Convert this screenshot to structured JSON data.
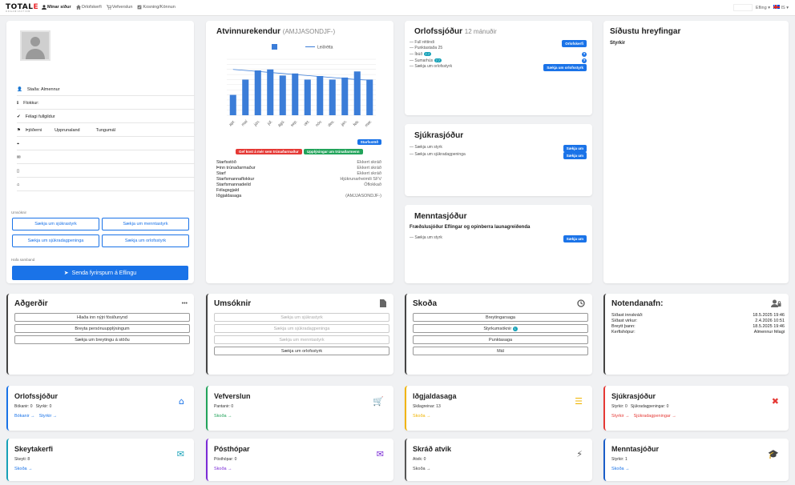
{
  "topbar": {
    "logo_main": "TOTAL",
    "logo_accent": "E",
    "logo_sub": "ORGANIZATION",
    "nav": [
      {
        "label": "Mínar síður",
        "icon": "user-icon",
        "active": true
      },
      {
        "label": "Orlofskerfi",
        "icon": "home-icon",
        "active": false
      },
      {
        "label": "Vefverslun",
        "icon": "cart-icon",
        "active": false
      },
      {
        "label": "Kosning/Könnun",
        "icon": "ballot-icon",
        "active": false
      }
    ],
    "org_menu": "Efling ▾",
    "lang_menu": "IS ▾"
  },
  "profile": {
    "rows": [
      {
        "icon": "user-icon",
        "label": "Staða: Almennur"
      },
      {
        "icon": "info-icon",
        "label": "Flokkur:"
      },
      {
        "icon": "check-icon",
        "label": "Félagi fullgildur"
      },
      {
        "icon": "flag-icon",
        "label": "Þjóðerni",
        "extra1": "Upprunaland",
        "extra2": "Tungumál"
      },
      {
        "icon": "location-icon",
        "label": ""
      },
      {
        "icon": "email-icon",
        "label": ""
      },
      {
        "icon": "phone-icon",
        "label": ""
      },
      {
        "icon": "bank-icon",
        "label": ""
      }
    ],
    "applications_label": "Umsóknir",
    "buttons": [
      "Sækja um sjúkrastyrk",
      "Sækja um menntastyrk",
      "Sækja um sjúkradagpeninga",
      "Sækja um orlofsstyrk"
    ],
    "contact_label": "Hafa samband",
    "send_button": "Senda fyrirspurn á Eflingu"
  },
  "employers": {
    "title": "Atvinnurekendur",
    "title_dim": "(AMJJASONDJF-)",
    "legend": "Leiðrétta",
    "starfsstod_btn": "Starfsstöð",
    "red_btn": "Gef kost á mér sem trúnaðarmaður",
    "green_btn": "Upplýsingar um trúnaðarmenn",
    "details": [
      {
        "k": "Starfsstöð",
        "v": "Ekkert skráð"
      },
      {
        "k": "Þinn trúnaðarmaður",
        "v": "Ekkert skráð"
      },
      {
        "k": "Starf",
        "v": "Ekkert skráð"
      },
      {
        "k": "Starfsmannaflokkur",
        "v": "Hjúkrunarheimili SFV"
      },
      {
        "k": "Starfsmannadeild",
        "v": "Óflokkað"
      },
      {
        "k": "Félagsgjald",
        "v": ""
      },
      {
        "k": "Iðgjaldasaga",
        "v": "(AMJJASONDJF-)"
      }
    ]
  },
  "chart_data": {
    "type": "bar",
    "categories": [
      "apr.",
      "maí",
      "jún.",
      "júl.",
      "ágú.",
      "sep.",
      "okt.",
      "nóv.",
      "des.",
      "jan.",
      "feb.",
      "mar."
    ],
    "values": [
      40,
      70,
      88,
      90,
      78,
      82,
      70,
      77,
      70,
      74,
      86,
      70
    ],
    "series": [
      {
        "name": "Leiðrétta",
        "values": [
          90,
          88,
          86,
          84,
          82,
          80,
          78,
          76,
          74,
          72,
          70,
          69
        ]
      }
    ],
    "ylim": [
      0,
      110
    ],
    "grid": true,
    "legend": "top-right"
  },
  "orlof": {
    "title": "Orlofssjóður",
    "title_dim": "12 mánuðir",
    "rows": [
      {
        "label": "— Full réttindi",
        "btn": "Orlofskerfi"
      },
      {
        "label": "— Punktastaða 25",
        "btn": ""
      },
      {
        "label": "— Íbúð",
        "badge": "7.7",
        "q": true
      },
      {
        "label": "— Sumarhús",
        "badge": "7.7",
        "q": true
      },
      {
        "label": "— Sækja um orlofsstyrk",
        "btn": "Sækja um orlofsstyrk"
      }
    ]
  },
  "sjukra": {
    "title": "Sjúkrasjóður",
    "rows": [
      {
        "label": "— Sækja um styrk",
        "btn": "Sækja um"
      },
      {
        "label": "— Sækja um sjúkradagpeninga",
        "btn": "Sækja um"
      }
    ]
  },
  "mennta": {
    "title": "Menntasjóður",
    "subtitle": "Fræðslusjóður Eflingar og opinberra launagreiðenda",
    "rows": [
      {
        "label": "— Sækja um styrk",
        "btn": "Sækja um"
      }
    ]
  },
  "recent": {
    "title": "Síðustu hreyfingar",
    "subtitle": "Styrkir"
  },
  "agerdir": {
    "title": "Aðgerðir",
    "more": "•••",
    "buttons": [
      "Hlaða inn nýjri fósiðunynd",
      "Breyta persónuupplýsingum",
      "Sækja um breytingu á stöðu"
    ]
  },
  "umsoknir": {
    "title": "Umsóknir",
    "buttons": [
      "Sækja um sjúkrastyrk",
      "Sækja um sjúkradagpeninga",
      "Sækja um menntastyrk",
      "Sækja um orlofsstyrk"
    ]
  },
  "skoda": {
    "title": "Skoða",
    "buttons": [
      "Breytingarsaga",
      "Styrkumsóknir",
      "Punktasaga",
      "Mál"
    ],
    "badge": "1"
  },
  "notendanafn": {
    "title": "Notendanafn:",
    "rows": [
      {
        "k": "Síðast innskráð:",
        "v": "18.5.2025 19:46"
      },
      {
        "k": "Síðast virkur:",
        "v": "2.4.2026 10:51"
      },
      {
        "k": "Breytt þann:",
        "v": "18.5.2025 19:46"
      },
      {
        "k": "Kerfishópur:",
        "v": "Almennur félagi"
      }
    ]
  },
  "tiles": [
    {
      "title": "Orlofssjóður",
      "lines": [
        "Bókanir: 0   Styrkir: 0"
      ],
      "links": [
        "Bókanir →",
        "Styrkir →"
      ],
      "color": "#1a73e8",
      "icon": "home-icon"
    },
    {
      "title": "Vefverslun",
      "lines": [
        "Pantanir: 0"
      ],
      "links": [
        "Skoða →"
      ],
      "color": "#21a35a",
      "icon": "cart-icon"
    },
    {
      "title": "Iðgjaldasaga",
      "lines": [
        "Skilagreinar: 13"
      ],
      "links": [
        "Skoða →"
      ],
      "color": "#f0b400",
      "icon": "list-icon"
    },
    {
      "title": "Sjúkrasjóður",
      "lines": [
        "Styrkir: 0   Sjúkradagpeningar: 0"
      ],
      "links": [
        "Styrkir →",
        "Sjúkradagpeningar →"
      ],
      "color": "#e53935",
      "icon": "close-circle-icon"
    },
    {
      "title": "Skeytakerfi",
      "lines": [
        "Skeyti: 8"
      ],
      "links": [
        "Skoða →"
      ],
      "color": "#17a2b8",
      "icon": "envelope-icon"
    },
    {
      "title": "Pósthópar",
      "lines": [
        "Pósthópar: 0"
      ],
      "links": [
        "Skoða →"
      ],
      "color": "#7b2bd6",
      "icon": "mail-group-icon"
    },
    {
      "title": "Skráð atvik",
      "lines": [
        "Atvik: 0"
      ],
      "links": [
        "Skoða →"
      ],
      "color": "#555555",
      "icon": "bolt-icon"
    },
    {
      "title": "Menntasjóður",
      "lines": [
        "Styrkir: 1"
      ],
      "links": [
        "Skoða →"
      ],
      "color": "#1a5dc8",
      "icon": "graduation-icon"
    }
  ]
}
